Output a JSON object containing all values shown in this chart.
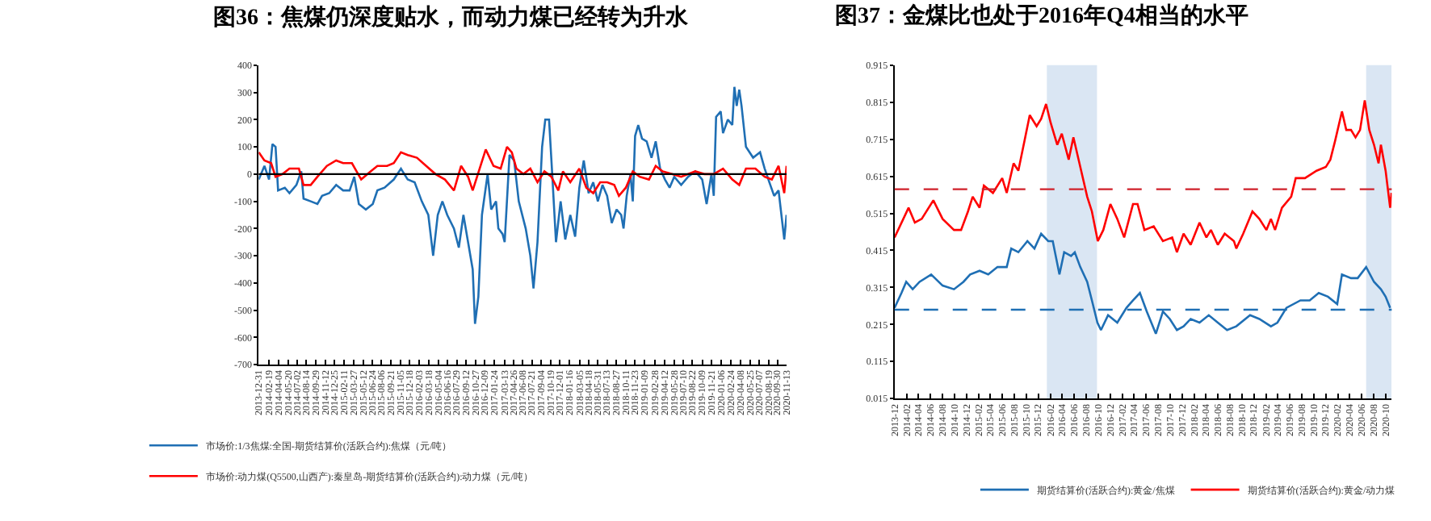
{
  "chart_data": [
    {
      "type": "line",
      "title": "图36：焦煤仍深度贴水，而动力煤已经转为升水",
      "xlim": [
        "2013-12-31",
        "2020-11-13"
      ],
      "xticks": [
        "2013-12-31",
        "2014-02-19",
        "2014-04-04",
        "2014-05-20",
        "2014-07-02",
        "2014-08-14",
        "2014-09-29",
        "2014-11-12",
        "2014-12-25",
        "2015-02-11",
        "2015-03-27",
        "2015-05-12",
        "2015-06-24",
        "2015-08-06",
        "2015-09-21",
        "2015-11-05",
        "2015-12-18",
        "2016-02-03",
        "2016-03-18",
        "2016-05-04",
        "2016-06-16",
        "2016-07-29",
        "2016-09-12",
        "2016-10-27",
        "2016-12-09",
        "2017-01-24",
        "2017-03-13",
        "2017-04-26",
        "2017-06-08",
        "2017-07-21",
        "2017-09-04",
        "2017-10-19",
        "2017-12-01",
        "2018-01-16",
        "2018-03-05",
        "2018-04-18",
        "2018-05-31",
        "2018-07-13",
        "2018-08-27",
        "2018-10-11",
        "2018-11-23",
        "2019-01-09",
        "2019-02-28",
        "2019-04-12",
        "2019-05-28",
        "2019-07-10",
        "2019-08-22",
        "2019-10-09",
        "2019-11-21",
        "2020-01-06",
        "2020-02-24",
        "2020-04-08",
        "2020-05-25",
        "2020-07-07",
        "2020-08-19",
        "2020-09-30",
        "2020-11-13"
      ],
      "ylim": [
        -700,
        400
      ],
      "yticks": [
        -700,
        -600,
        -500,
        -400,
        -300,
        -200,
        -100,
        0,
        100,
        200,
        300,
        400
      ],
      "grid": false,
      "legend": "bottom",
      "ref_lines": [
        {
          "axis": "y",
          "value": 0,
          "color": "#000000",
          "line_style": "solid"
        }
      ],
      "series": [
        {
          "name": "市场价:1/3焦煤:全国-期货结算价(活跃合约):焦煤（元/吨）",
          "color": "#1f6fb4",
          "x": [
            "2013-12-31",
            "2014-01-27",
            "2014-02-18",
            "2014-03-06",
            "2014-03-21",
            "2014-04-02",
            "2014-05-04",
            "2014-05-26",
            "2014-06-28",
            "2014-07-21",
            "2014-08-01",
            "2014-09-04",
            "2014-10-06",
            "2014-10-28",
            "2014-12-01",
            "2015-01-03",
            "2015-02-05",
            "2015-03-08",
            "2015-03-30",
            "2015-04-21",
            "2015-05-24",
            "2015-06-26",
            "2015-07-18",
            "2015-08-21",
            "2015-10-04",
            "2015-11-07",
            "2015-12-09",
            "2016-01-11",
            "2016-02-14",
            "2016-03-16",
            "2016-04-08",
            "2016-04-30",
            "2016-05-22",
            "2016-06-14",
            "2016-07-16",
            "2016-08-08",
            "2016-08-30",
            "2016-09-21",
            "2016-10-13",
            "2016-10-24",
            "2016-11-09",
            "2016-11-26",
            "2016-12-14",
            "2016-12-23",
            "2017-01-09",
            "2017-02-01",
            "2017-02-12",
            "2017-03-04",
            "2017-03-14",
            "2017-04-06",
            "2017-04-28",
            "2017-05-20",
            "2017-06-22",
            "2017-07-14",
            "2017-07-29",
            "2017-08-17",
            "2017-09-08",
            "2017-09-23",
            "2017-10-11",
            "2017-10-26",
            "2017-11-13",
            "2017-12-05",
            "2017-12-27",
            "2018-01-20",
            "2018-02-12",
            "2018-03-04",
            "2018-03-25",
            "2018-04-17",
            "2018-05-09",
            "2018-05-31",
            "2018-06-22",
            "2018-07-14",
            "2018-08-05",
            "2018-08-28",
            "2018-09-19",
            "2018-09-30",
            "2018-10-15",
            "2018-11-02",
            "2018-11-13",
            "2018-11-24",
            "2018-12-09",
            "2018-12-27",
            "2019-01-18",
            "2019-02-10",
            "2019-03-02",
            "2019-03-23",
            "2019-04-15",
            "2019-05-07",
            "2019-05-29",
            "2019-07-01",
            "2019-08-03",
            "2019-09-06",
            "2019-10-09",
            "2019-10-30",
            "2019-11-22",
            "2019-12-03",
            "2019-12-14",
            "2020-01-05",
            "2020-01-16",
            "2020-02-08",
            "2020-02-29",
            "2020-03-10",
            "2020-03-21",
            "2020-04-02",
            "2020-04-13",
            "2020-05-04",
            "2020-06-07",
            "2020-07-10",
            "2020-08-01",
            "2020-08-23",
            "2020-09-15",
            "2020-10-06",
            "2020-10-24",
            "2020-11-02",
            "2020-11-13"
          ],
          "values": [
            -20,
            30,
            -20,
            110,
            100,
            -60,
            -50,
            -70,
            -40,
            10,
            -90,
            -100,
            -110,
            -80,
            -70,
            -40,
            -60,
            -60,
            -10,
            -110,
            -130,
            -110,
            -60,
            -50,
            -20,
            20,
            -20,
            -30,
            -100,
            -150,
            -300,
            -150,
            -100,
            -150,
            -200,
            -270,
            -150,
            -250,
            -350,
            -550,
            -450,
            -150,
            -50,
            0,
            -130,
            -100,
            -200,
            -220,
            -250,
            70,
            50,
            -100,
            -200,
            -300,
            -420,
            -250,
            100,
            200,
            200,
            0,
            -250,
            -100,
            -240,
            -150,
            -230,
            -50,
            50,
            -70,
            -30,
            -100,
            -40,
            -80,
            -180,
            -130,
            -150,
            -200,
            -80,
            0,
            -100,
            140,
            180,
            130,
            120,
            60,
            120,
            20,
            -20,
            -50,
            -10,
            -40,
            -10,
            10,
            -20,
            -110,
            0,
            -80,
            210,
            230,
            150,
            200,
            180,
            320,
            250,
            310,
            250,
            100,
            60,
            80,
            20,
            -30,
            -80,
            -60,
            -180,
            -240,
            -150
          ]
        },
        {
          "name": "市场价:动力煤(Q5500,山西产):秦皇岛-期货结算价(活跃合约):动力煤（元/吨）",
          "color": "#ff0000",
          "x": [
            "2013-12-31",
            "2014-01-27",
            "2014-02-28",
            "2014-03-21",
            "2014-04-23",
            "2014-05-26",
            "2014-07-10",
            "2014-08-01",
            "2014-09-04",
            "2014-10-06",
            "2014-11-20",
            "2015-01-03",
            "2015-02-05",
            "2015-03-19",
            "2015-05-02",
            "2015-06-16",
            "2015-07-18",
            "2015-09-02",
            "2015-10-04",
            "2015-11-07",
            "2015-12-09",
            "2016-01-22",
            "2016-03-06",
            "2016-04-19",
            "2016-06-03",
            "2016-07-16",
            "2016-08-19",
            "2016-09-21",
            "2016-10-13",
            "2016-11-15",
            "2016-12-14",
            "2017-01-20",
            "2017-02-23",
            "2017-03-25",
            "2017-04-17",
            "2017-05-09",
            "2017-06-11",
            "2017-07-14",
            "2017-08-17",
            "2017-09-19",
            "2017-10-22",
            "2017-11-24",
            "2017-12-16",
            "2018-01-20",
            "2018-03-04",
            "2018-04-06",
            "2018-05-09",
            "2018-06-11",
            "2018-07-14",
            "2018-08-17",
            "2018-09-08",
            "2018-10-11",
            "2018-11-13",
            "2018-12-16",
            "2019-01-29",
            "2019-03-02",
            "2019-04-04",
            "2019-05-18",
            "2019-07-01",
            "2019-09-06",
            "2019-10-19",
            "2019-12-03",
            "2020-01-16",
            "2020-02-29",
            "2020-04-02",
            "2020-05-04",
            "2020-06-18",
            "2020-08-01",
            "2020-09-04",
            "2020-10-06",
            "2020-11-02",
            "2020-11-13"
          ],
          "values": [
            80,
            50,
            40,
            -10,
            0,
            20,
            20,
            -40,
            -40,
            -10,
            30,
            50,
            40,
            40,
            -20,
            10,
            30,
            30,
            40,
            80,
            70,
            60,
            30,
            0,
            -20,
            -60,
            30,
            -10,
            -60,
            20,
            90,
            30,
            20,
            100,
            80,
            20,
            0,
            20,
            -30,
            10,
            -10,
            -60,
            10,
            -30,
            20,
            -50,
            -70,
            -30,
            -30,
            -40,
            -80,
            -50,
            10,
            -10,
            -20,
            30,
            10,
            0,
            -10,
            10,
            0,
            0,
            20,
            -20,
            -40,
            20,
            20,
            -10,
            -20,
            30,
            -70,
            30
          ]
        }
      ]
    },
    {
      "type": "line",
      "title": "图37：金煤比也处于2016年Q4相当的水平",
      "xlim": [
        "2013-12-01",
        "2020-11-01"
      ],
      "xticks": [
        "2013-12",
        "2014-02",
        "2014-04",
        "2014-06",
        "2014-08",
        "2014-10",
        "2014-12",
        "2015-02",
        "2015-04",
        "2015-06",
        "2015-08",
        "2015-10",
        "2015-12",
        "2016-02",
        "2016-04",
        "2016-06",
        "2016-08",
        "2016-10",
        "2016-12",
        "2017-02",
        "2017-04",
        "2017-06",
        "2017-08",
        "2017-10",
        "2017-12",
        "2018-02",
        "2018-04",
        "2018-06",
        "2018-08",
        "2018-10",
        "2018-12",
        "2019-02",
        "2019-04",
        "2019-06",
        "2019-08",
        "2019-10",
        "2019-12",
        "2020-02",
        "2020-04",
        "2020-06",
        "2020-08",
        "2020-10"
      ],
      "ylim": [
        0.015,
        0.915
      ],
      "yticks": [
        0.015,
        0.115,
        0.215,
        0.315,
        0.415,
        0.515,
        0.615,
        0.715,
        0.815,
        0.915
      ],
      "grid": false,
      "legend": "bottom",
      "bands": [
        {
          "axis": "x",
          "from": "2016-01-14",
          "to": "2016-09-25",
          "color": "#dae6f3"
        },
        {
          "axis": "x",
          "from": "2020-06-24",
          "to": "2020-10-31",
          "color": "#dae6f3"
        }
      ],
      "ref_lines": [
        {
          "axis": "y",
          "value": 0.58,
          "color": "#d0202a",
          "line_style": "dashed"
        },
        {
          "axis": "y",
          "value": 0.255,
          "color": "#1f6fb4",
          "line_style": "dashed"
        }
      ],
      "series": [
        {
          "name": "期货结算价(活跃合约):黄金/焦煤",
          "color": "#1f6fb4",
          "x": [
            "2013-12-01",
            "2014-01-05",
            "2014-01-29",
            "2014-03-03",
            "2014-04-07",
            "2014-06-05",
            "2014-08-02",
            "2014-09-29",
            "2014-11-16",
            "2014-12-20",
            "2015-02-06",
            "2015-03-22",
            "2015-05-08",
            "2015-06-24",
            "2015-07-17",
            "2015-08-22",
            "2015-10-07",
            "2015-11-12",
            "2015-12-16",
            "2016-01-21",
            "2016-02-13",
            "2016-03-18",
            "2016-04-11",
            "2016-05-16",
            "2016-06-04",
            "2016-07-02",
            "2016-08-06",
            "2016-08-30",
            "2016-09-27",
            "2016-10-15",
            "2016-11-20",
            "2017-01-06",
            "2017-02-22",
            "2017-03-27",
            "2017-05-01",
            "2017-06-05",
            "2017-06-28",
            "2017-07-21",
            "2017-08-26",
            "2017-09-30",
            "2017-11-05",
            "2017-12-09",
            "2018-01-14",
            "2018-02-28",
            "2018-04-16",
            "2018-06-01",
            "2018-07-18",
            "2018-09-03",
            "2018-11-12",
            "2018-12-29",
            "2019-02-26",
            "2019-03-31",
            "2019-05-16",
            "2019-07-26",
            "2019-09-11",
            "2019-10-27",
            "2019-12-13",
            "2020-01-29",
            "2020-02-22",
            "2020-04-08",
            "2020-05-12",
            "2020-06-24",
            "2020-08-03",
            "2020-09-07",
            "2020-10-01",
            "2020-10-24"
          ],
          "values": [
            0.26,
            0.3,
            0.33,
            0.31,
            0.33,
            0.35,
            0.32,
            0.31,
            0.33,
            0.35,
            0.36,
            0.35,
            0.37,
            0.37,
            0.42,
            0.41,
            0.44,
            0.42,
            0.46,
            0.44,
            0.44,
            0.35,
            0.41,
            0.4,
            0.41,
            0.37,
            0.33,
            0.28,
            0.22,
            0.2,
            0.24,
            0.22,
            0.26,
            0.28,
            0.3,
            0.25,
            0.22,
            0.19,
            0.25,
            0.23,
            0.2,
            0.21,
            0.23,
            0.22,
            0.24,
            0.22,
            0.2,
            0.21,
            0.24,
            0.23,
            0.21,
            0.22,
            0.26,
            0.28,
            0.28,
            0.3,
            0.29,
            0.27,
            0.35,
            0.34,
            0.34,
            0.37,
            0.33,
            0.31,
            0.29,
            0.26
          ]
        },
        {
          "name": "期货结算价(活跃合约):黄金/动力煤",
          "color": "#ff0000",
          "x": [
            "2013-12-01",
            "2014-02-10",
            "2014-03-14",
            "2014-04-18",
            "2014-06-16",
            "2014-08-02",
            "2014-09-29",
            "2014-11-04",
            "2014-12-09",
            "2015-01-02",
            "2015-02-06",
            "2015-02-28",
            "2015-04-15",
            "2015-06-01",
            "2015-06-24",
            "2015-07-29",
            "2015-08-22",
            "2015-09-26",
            "2015-10-19",
            "2015-11-23",
            "2015-12-16",
            "2016-01-10",
            "2016-02-02",
            "2016-03-07",
            "2016-03-30",
            "2016-05-04",
            "2016-05-28",
            "2016-07-02",
            "2016-08-06",
            "2016-08-30",
            "2016-09-29",
            "2016-10-27",
            "2016-12-02",
            "2017-01-06",
            "2017-02-10",
            "2017-03-27",
            "2017-04-19",
            "2017-05-24",
            "2017-07-10",
            "2017-08-26",
            "2017-10-12",
            "2017-11-05",
            "2017-12-09",
            "2018-01-14",
            "2018-02-28",
            "2018-04-04",
            "2018-04-27",
            "2018-06-01",
            "2018-07-06",
            "2018-08-22",
            "2018-09-03",
            "2018-10-08",
            "2018-11-24",
            "2018-12-29",
            "2019-02-03",
            "2019-02-26",
            "2019-03-19",
            "2019-04-23",
            "2019-06-09",
            "2019-07-02",
            "2019-08-18",
            "2019-10-16",
            "2019-12-02",
            "2019-12-25",
            "2020-01-18",
            "2020-02-22",
            "2020-03-15",
            "2020-04-08",
            "2020-05-01",
            "2020-05-24",
            "2020-06-17",
            "2020-07-10",
            "2020-08-03",
            "2020-08-26",
            "2020-09-07",
            "2020-10-01",
            "2020-10-24",
            "2020-10-31"
          ],
          "values": [
            0.45,
            0.53,
            0.49,
            0.5,
            0.55,
            0.5,
            0.47,
            0.47,
            0.52,
            0.56,
            0.53,
            0.59,
            0.57,
            0.61,
            0.57,
            0.65,
            0.63,
            0.72,
            0.78,
            0.75,
            0.77,
            0.81,
            0.76,
            0.7,
            0.73,
            0.66,
            0.72,
            0.64,
            0.56,
            0.52,
            0.44,
            0.47,
            0.54,
            0.5,
            0.45,
            0.54,
            0.54,
            0.47,
            0.48,
            0.44,
            0.45,
            0.41,
            0.46,
            0.43,
            0.49,
            0.45,
            0.47,
            0.43,
            0.46,
            0.44,
            0.42,
            0.46,
            0.52,
            0.5,
            0.47,
            0.5,
            0.47,
            0.53,
            0.56,
            0.61,
            0.61,
            0.63,
            0.64,
            0.66,
            0.71,
            0.79,
            0.74,
            0.74,
            0.72,
            0.74,
            0.82,
            0.74,
            0.7,
            0.65,
            0.7,
            0.63,
            0.53,
            0.57
          ]
        }
      ]
    }
  ]
}
